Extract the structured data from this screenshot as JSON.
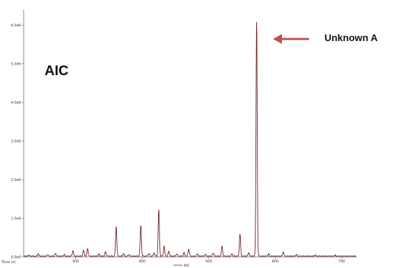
{
  "chart_data": {
    "type": "line",
    "chart_label": "AIC",
    "annotation": {
      "text": "Unknown A",
      "target_x": 572,
      "target_y": 6000000,
      "arrow_color": "#c0504d"
    },
    "xlabel": "Time (s)",
    "xlim": [
      222,
      722
    ],
    "ylim": [
      0,
      6400000
    ],
    "x_ticks": [
      300,
      400,
      500,
      600,
      700
    ],
    "y_ticks": [
      {
        "value": 0,
        "label": "0.0e0"
      },
      {
        "value": 1000000,
        "label": "1.0e6"
      },
      {
        "value": 2000000,
        "label": "2.0e6"
      },
      {
        "value": 3000000,
        "label": "3.0e6"
      },
      {
        "value": 4000000,
        "label": "4.0e6"
      },
      {
        "value": 5000000,
        "label": "5.0e6"
      },
      {
        "value": 6000000,
        "label": "6.0e6"
      }
    ],
    "legend": {
      "position": "bottom-center",
      "entries": [
        "AIC"
      ]
    },
    "series": [
      {
        "name": "AIC",
        "color": "#6b1d1d",
        "baseline": 20000,
        "peaks": [
          {
            "x": 230,
            "y": 30000
          },
          {
            "x": 244,
            "y": 60000
          },
          {
            "x": 258,
            "y": 45000
          },
          {
            "x": 270,
            "y": 70000
          },
          {
            "x": 283,
            "y": 40000
          },
          {
            "x": 296,
            "y": 140000
          },
          {
            "x": 312,
            "y": 150000
          },
          {
            "x": 318,
            "y": 200000
          },
          {
            "x": 335,
            "y": 50000
          },
          {
            "x": 345,
            "y": 110000
          },
          {
            "x": 361,
            "y": 770000
          },
          {
            "x": 372,
            "y": 60000
          },
          {
            "x": 380,
            "y": 45000
          },
          {
            "x": 398,
            "y": 790000
          },
          {
            "x": 410,
            "y": 70000
          },
          {
            "x": 418,
            "y": 90000
          },
          {
            "x": 425,
            "y": 1200000
          },
          {
            "x": 433,
            "y": 260000
          },
          {
            "x": 440,
            "y": 130000
          },
          {
            "x": 452,
            "y": 60000
          },
          {
            "x": 463,
            "y": 90000
          },
          {
            "x": 470,
            "y": 190000
          },
          {
            "x": 483,
            "y": 60000
          },
          {
            "x": 495,
            "y": 50000
          },
          {
            "x": 507,
            "y": 80000
          },
          {
            "x": 520,
            "y": 250000
          },
          {
            "x": 535,
            "y": 60000
          },
          {
            "x": 547,
            "y": 570000
          },
          {
            "x": 560,
            "y": 90000
          },
          {
            "x": 572,
            "y": 6050000
          },
          {
            "x": 590,
            "y": 60000
          },
          {
            "x": 612,
            "y": 110000
          },
          {
            "x": 632,
            "y": 40000
          },
          {
            "x": 660,
            "y": 30000
          },
          {
            "x": 690,
            "y": 25000
          }
        ]
      }
    ]
  }
}
